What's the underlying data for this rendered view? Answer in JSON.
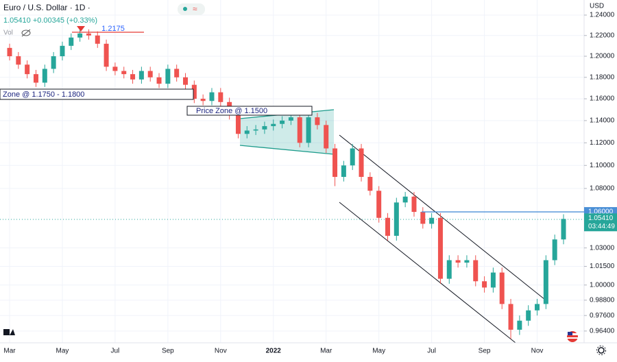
{
  "chart_data": {
    "type": "candlestick",
    "title": "Euro / U.S. Dollar · 1D ·",
    "quote": "1.05410 +0.00345 (+0.33%)",
    "volume_label": "Vol",
    "currency": "USD",
    "log_scale": true,
    "grid": true,
    "up_color": "#26a69a",
    "down_color": "#ef5350",
    "categories": [
      "Mar",
      null,
      null,
      null,
      null,
      null,
      "May",
      null,
      null,
      null,
      null,
      null,
      "Jul",
      null,
      null,
      null,
      null,
      null,
      "Sep",
      null,
      null,
      null,
      null,
      null,
      "Nov",
      null,
      null,
      null,
      null,
      null,
      "2022",
      null,
      null,
      null,
      null,
      null,
      "Mar",
      null,
      null,
      null,
      null,
      null,
      "May",
      null,
      null,
      null,
      null,
      null,
      "Jul",
      null,
      null,
      null,
      null,
      null,
      "Sep",
      null,
      null,
      null,
      null,
      null,
      "Nov",
      null,
      null,
      null
    ],
    "open": [
      1.208,
      1.2,
      1.192,
      1.183,
      1.175,
      1.188,
      1.2,
      1.21,
      1.218,
      1.222,
      1.22,
      1.212,
      1.19,
      1.186,
      1.183,
      1.178,
      1.186,
      1.18,
      1.174,
      1.188,
      1.18,
      1.173,
      1.16,
      1.158,
      1.166,
      1.157,
      1.145,
      1.128,
      1.131,
      1.132,
      1.135,
      1.137,
      1.14,
      1.143,
      1.12,
      1.143,
      1.136,
      1.115,
      1.09,
      1.1,
      1.115,
      1.09,
      1.078,
      1.055,
      1.04,
      1.068,
      1.073,
      1.06,
      1.05,
      1.055,
      1.005,
      1.02,
      1.018,
      1.02,
      1.003,
      0.998,
      1.01,
      0.985,
      0.965,
      0.972,
      0.98,
      0.985,
      1.02,
      1.037
    ],
    "high": [
      1.212,
      1.204,
      1.196,
      1.187,
      1.192,
      1.204,
      1.214,
      1.222,
      1.2266,
      1.226,
      1.224,
      1.216,
      1.194,
      1.19,
      1.187,
      1.19,
      1.19,
      1.184,
      1.192,
      1.192,
      1.184,
      1.177,
      1.164,
      1.17,
      1.17,
      1.161,
      1.149,
      1.135,
      1.136,
      1.139,
      1.141,
      1.144,
      1.147,
      1.147,
      1.149,
      1.147,
      1.14,
      1.119,
      1.104,
      1.119,
      1.119,
      1.094,
      1.082,
      1.059,
      1.072,
      1.077,
      1.077,
      1.064,
      1.059,
      1.059,
      1.024,
      1.024,
      1.024,
      1.024,
      1.007,
      1.014,
      1.014,
      0.989,
      0.976,
      0.984,
      0.989,
      1.024,
      1.041,
      1.058
    ],
    "low": [
      1.196,
      1.188,
      1.179,
      1.171,
      1.171,
      1.184,
      1.196,
      1.206,
      1.214,
      1.216,
      1.208,
      1.186,
      1.182,
      1.179,
      1.174,
      1.174,
      1.176,
      1.17,
      1.17,
      1.176,
      1.169,
      1.156,
      1.154,
      1.154,
      1.153,
      1.141,
      1.124,
      1.124,
      1.127,
      1.128,
      1.131,
      1.133,
      1.136,
      1.116,
      1.116,
      1.132,
      1.111,
      1.082,
      1.086,
      1.096,
      1.086,
      1.074,
      1.051,
      1.036,
      1.036,
      1.064,
      1.056,
      1.046,
      1.046,
      1.001,
      1.001,
      1.014,
      1.014,
      0.999,
      0.994,
      0.994,
      0.981,
      0.958,
      0.961,
      0.968,
      0.976,
      0.981,
      1.016,
      1.033
    ],
    "close": [
      1.2,
      1.192,
      1.183,
      1.175,
      1.188,
      1.2,
      1.21,
      1.218,
      1.222,
      1.22,
      1.212,
      1.19,
      1.186,
      1.183,
      1.178,
      1.186,
      1.18,
      1.174,
      1.188,
      1.18,
      1.173,
      1.16,
      1.158,
      1.166,
      1.157,
      1.145,
      1.128,
      1.131,
      1.132,
      1.135,
      1.137,
      1.14,
      1.143,
      1.12,
      1.143,
      1.136,
      1.115,
      1.09,
      1.1,
      1.115,
      1.09,
      1.078,
      1.055,
      1.04,
      1.068,
      1.073,
      1.06,
      1.05,
      1.055,
      1.005,
      1.02,
      1.018,
      1.02,
      1.003,
      0.998,
      1.01,
      0.985,
      0.965,
      0.972,
      0.98,
      0.985,
      1.02,
      1.037,
      1.0541
    ],
    "last_price_label": "1.05410",
    "countdown": "03:44:49",
    "ylim": [
      0.955,
      1.255
    ],
    "yticks": [
      {
        "value": 1.24,
        "label": "1.24000"
      },
      {
        "value": 1.22,
        "label": "1.22000"
      },
      {
        "value": 1.2,
        "label": "1.20000"
      },
      {
        "value": 1.18,
        "label": "1.18000"
      },
      {
        "value": 1.16,
        "label": "1.16000"
      },
      {
        "value": 1.14,
        "label": "1.14000"
      },
      {
        "value": 1.12,
        "label": "1.12000"
      },
      {
        "value": 1.1,
        "label": "1.10000"
      },
      {
        "value": 1.08,
        "label": "1.08000"
      },
      {
        "value": 1.03,
        "label": "1.03000"
      },
      {
        "value": 1.015,
        "label": "1.01500"
      },
      {
        "value": 1.0,
        "label": "1.00000"
      },
      {
        "value": 0.988,
        "label": "0.98800"
      },
      {
        "value": 0.976,
        "label": "0.97600"
      },
      {
        "value": 0.964,
        "label": "0.96400"
      }
    ],
    "hline": {
      "value": 1.06,
      "label": "1.06000",
      "color": "#4a8fd6"
    },
    "annotations": {
      "peak": "1.2175",
      "zone_upper": "Zone @ 1.1750 - 1.1800",
      "zone_lower": "Price Zone @ 1.1500"
    }
  }
}
